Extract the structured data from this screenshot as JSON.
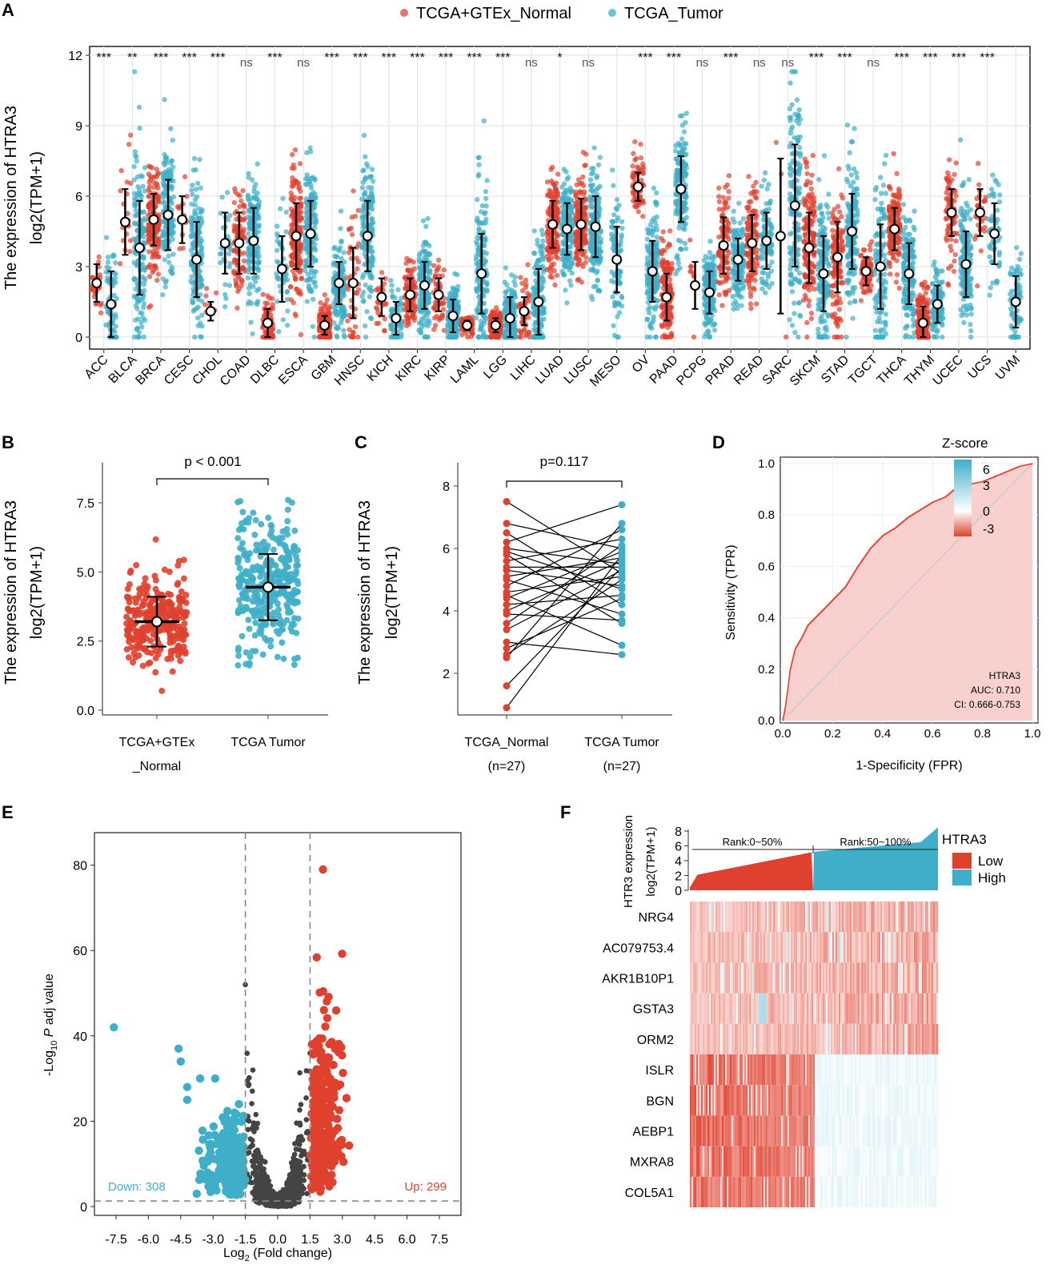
{
  "colors": {
    "normal": "#E0412F",
    "tumor": "#3FAFC9",
    "grid": "#e6e6e6",
    "ns": "#555555"
  },
  "chart_data": [
    {
      "panel": "A",
      "type": "scatter",
      "legend": [
        "TCGA+GTEx_Normal",
        "TCGA_Tumor"
      ],
      "ylabel": [
        "The expression of HTRA3",
        "log2(TPM+1)"
      ],
      "ylim": [
        0,
        12
      ],
      "yticks": [
        "0",
        "3",
        "6",
        "9",
        "12"
      ],
      "categories": [
        "ACC",
        "BLCA",
        "BRCA",
        "CESC",
        "CHOL",
        "COAD",
        "DLBC",
        "ESCA",
        "GBM",
        "HNSC",
        "KICH",
        "KIRC",
        "KIRP",
        "LAML",
        "LGG",
        "LIHC",
        "LUAD",
        "LUSC",
        "MESO",
        "OV",
        "PAAD",
        "PCPG",
        "PRAD",
        "READ",
        "SARC",
        "SKCM",
        "STAD",
        "TGCT",
        "THCA",
        "THYM",
        "UCEC",
        "UCS",
        "UVM"
      ],
      "significance": [
        "***",
        "**",
        "***",
        "***",
        "***",
        "ns",
        "***",
        "ns",
        "***",
        "***",
        "***",
        "***",
        "***",
        "***",
        "***",
        "ns",
        "*",
        "ns",
        "",
        "***",
        "***",
        "ns",
        "***",
        "ns",
        "ns",
        "***",
        "***",
        "ns",
        "***",
        "***",
        "***",
        "***",
        ""
      ],
      "normal_mean": [
        2.3,
        4.9,
        5.0,
        5.0,
        1.1,
        4.0,
        0.6,
        4.3,
        0.5,
        2.3,
        1.7,
        1.8,
        1.8,
        0.5,
        0.5,
        1.1,
        4.8,
        4.8,
        null,
        6.4,
        1.7,
        2.2,
        3.9,
        4.0,
        4.3,
        3.8,
        3.4,
        2.8,
        4.6,
        0.6,
        5.3,
        5.3,
        null
      ],
      "normal_sd": [
        0.8,
        1.4,
        1.1,
        1.0,
        0.4,
        1.3,
        0.6,
        1.4,
        0.4,
        1.5,
        0.8,
        0.7,
        0.7,
        0.2,
        0.3,
        0.6,
        1.0,
        1.1,
        null,
        0.6,
        1.0,
        1.0,
        1.2,
        1.2,
        3.3,
        1.5,
        1.5,
        0.6,
        0.9,
        0.7,
        1.0,
        1.0,
        null
      ],
      "normal_n": [
        30,
        20,
        200,
        12,
        8,
        90,
        70,
        260,
        160,
        45,
        25,
        100,
        55,
        70,
        180,
        50,
        280,
        240,
        0,
        70,
        150,
        8,
        100,
        130,
        3,
        250,
        120,
        80,
        200,
        170,
        80,
        30,
        0
      ],
      "tumor_mean": [
        1.4,
        3.8,
        5.2,
        3.3,
        4.0,
        4.1,
        2.9,
        4.4,
        2.3,
        4.3,
        0.8,
        2.2,
        0.9,
        2.7,
        0.8,
        1.5,
        4.6,
        4.7,
        3.3,
        2.8,
        6.3,
        1.9,
        3.3,
        4.1,
        5.6,
        2.7,
        4.5,
        3.0,
        2.7,
        1.4,
        3.1,
        4.4,
        1.5
      ],
      "tumor_sd": [
        1.4,
        2.0,
        1.5,
        1.6,
        1.3,
        1.4,
        1.4,
        1.4,
        0.9,
        1.5,
        0.7,
        1.0,
        0.7,
        1.7,
        0.9,
        1.4,
        1.1,
        1.3,
        1.4,
        1.3,
        1.4,
        0.9,
        0.9,
        1.2,
        2.6,
        1.6,
        1.6,
        1.8,
        1.3,
        0.8,
        1.4,
        1.3,
        1.1
      ],
      "tumor_n": [
        70,
        320,
        700,
        240,
        30,
        240,
        45,
        170,
        150,
        470,
        60,
        500,
        260,
        170,
        500,
        330,
        480,
        460,
        80,
        350,
        170,
        170,
        480,
        90,
        250,
        400,
        350,
        130,
        480,
        120,
        170,
        55,
        75
      ]
    },
    {
      "panel": "B",
      "type": "scatter",
      "title": "p < 0.001",
      "ylabel": [
        "The expression of HTRA3",
        "log2(TPM+1)"
      ],
      "ylim": [
        0,
        7.5
      ],
      "yticks": [
        "0.0",
        "2.5",
        "5.0",
        "7.5"
      ],
      "categories": [
        [
          "TCGA+GTEx",
          "_Normal"
        ],
        [
          "TCGA Tumor",
          ""
        ]
      ],
      "means": [
        3.2,
        4.45
      ],
      "sd": [
        0.9,
        1.2
      ],
      "n": [
        280,
        480
      ]
    },
    {
      "panel": "C",
      "type": "line",
      "title": "p=0.117",
      "ylabel": "The expression of HTRA3",
      "ylabel2": "log2(TPM+1)",
      "ylim": [
        0,
        8
      ],
      "yticks": [
        "2",
        "4",
        "6",
        "8"
      ],
      "categories": [
        [
          "TCGA_Normal",
          "(n=27)"
        ],
        [
          "TCGA Tumor",
          "(n=27)"
        ]
      ],
      "normal": [
        7.5,
        6.8,
        6.5,
        6.2,
        6.0,
        5.9,
        5.8,
        5.6,
        5.4,
        5.3,
        5.1,
        5.0,
        4.8,
        4.6,
        4.5,
        4.4,
        4.2,
        4.0,
        3.9,
        3.6,
        3.4,
        3.0,
        2.8,
        2.6,
        2.5,
        1.6,
        0.9
      ],
      "tumor": [
        5.2,
        6.0,
        4.2,
        7.4,
        5.5,
        4.7,
        3.6,
        6.3,
        5.4,
        4.8,
        5.7,
        3.9,
        6.6,
        5.1,
        2.9,
        5.9,
        4.5,
        5.6,
        3.7,
        6.1,
        5.3,
        2.6,
        4.4,
        5.0,
        6.8,
        5.4,
        5.8
      ]
    },
    {
      "panel": "D",
      "type": "area",
      "xlabel": "1-Specificity (FPR)",
      "ylabel": "Sensitivity (TPR)",
      "xlim": [
        0,
        1
      ],
      "ylim": [
        0,
        1
      ],
      "ticks": [
        "0.0",
        "0.2",
        "0.4",
        "0.6",
        "0.8",
        "1.0"
      ],
      "annotation": [
        "HTRA3",
        "AUC: 0.710",
        "CI: 0.666-0.753"
      ],
      "fpr": [
        0,
        0.01,
        0.02,
        0.03,
        0.05,
        0.08,
        0.1,
        0.12,
        0.15,
        0.2,
        0.25,
        0.3,
        0.35,
        0.4,
        0.45,
        0.5,
        0.55,
        0.6,
        0.65,
        0.7,
        0.75,
        0.8,
        0.85,
        0.9,
        0.95,
        1.0
      ],
      "tpr": [
        0,
        0.05,
        0.12,
        0.2,
        0.28,
        0.33,
        0.37,
        0.39,
        0.42,
        0.47,
        0.52,
        0.6,
        0.67,
        0.72,
        0.75,
        0.79,
        0.82,
        0.85,
        0.87,
        0.91,
        0.92,
        0.93,
        0.95,
        0.97,
        0.99,
        1.0
      ]
    },
    {
      "panel": "E",
      "type": "scatter",
      "xlabel_main": "Log",
      "xlabel_sub": "2",
      "xlabel_rest": " (Fold change)",
      "ylabel_pre": "-Log",
      "ylabel_sub": "10",
      "ylabel_p": " P",
      "ylabel_rest": " adj value",
      "xlim": [
        -8.5,
        8.5
      ],
      "ylim": [
        -2,
        83
      ],
      "xticks": [
        "-7.5",
        "-6.0",
        "-4.5",
        "-3.0",
        "-1.5",
        "0.0",
        "1.5",
        "3.0",
        "4.5",
        "6.0",
        "7.5"
      ],
      "yticks": [
        "0",
        "20",
        "40",
        "60",
        "80"
      ],
      "fc_threshold": 1.5,
      "padj_threshold": 1.3,
      "down_label": "Down: 308",
      "up_label": "Up: 299",
      "down_count": 308,
      "up_count": 299,
      "highlight_points": [
        [
          2.1,
          79
        ],
        [
          -7.6,
          42
        ],
        [
          -4.6,
          37
        ],
        [
          -4.5,
          34
        ],
        [
          -3.6,
          30
        ],
        [
          -4.2,
          28
        ],
        [
          -2.9,
          30
        ],
        [
          -4.2,
          25
        ],
        [
          -1.8,
          24
        ]
      ]
    },
    {
      "panel": "F",
      "type": "heatmap",
      "bar_ylabel": [
        "HTR3 expression",
        "log2(TPM+1)"
      ],
      "bar_yticks": [
        "0",
        "2",
        "4",
        "6",
        "8"
      ],
      "rank_labels": [
        "Rank:0~50%",
        "Rank:50~100%"
      ],
      "group_title": "HTRA3",
      "group_legend": [
        "Low",
        "High"
      ],
      "genes": [
        "NRG4",
        "AC079753.4",
        "AKR1B10P1",
        "GSTA3",
        "ORM2",
        "ISLR",
        "BGN",
        "AEBP1",
        "MXRA8",
        "COL5A1"
      ],
      "zscore_title": "Z-score",
      "zscore_ticks": [
        "6",
        "3",
        "0",
        "-3"
      ],
      "zscore_range": [
        -3,
        6
      ]
    }
  ],
  "panel_labels": [
    "A",
    "B",
    "C",
    "D",
    "E",
    "F"
  ]
}
